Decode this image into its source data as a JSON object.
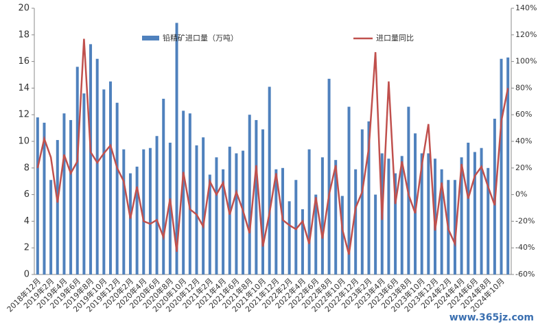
{
  "chart_data": {
    "type": "bar-line",
    "categories": [
      "2018年12月",
      null,
      "2019年2月",
      null,
      "2019年4月",
      null,
      "2019年6月",
      null,
      "2019年8月",
      null,
      "2019年10月",
      null,
      "2019年12月",
      null,
      "2020年2月",
      null,
      "2020年4月",
      null,
      "2020年6月",
      null,
      "2020年8月",
      null,
      "2020年10月",
      null,
      "2020年12月",
      null,
      "2021年2月",
      null,
      "2021年4月",
      null,
      "2021年6月",
      null,
      "2021年8月",
      null,
      "2021年10月",
      null,
      "2021年12月",
      null,
      "2022年2月",
      null,
      "2022年4月",
      null,
      "2022年6月",
      null,
      "2022年8月",
      null,
      "2022年10月",
      null,
      "2022年12月",
      null,
      "2023年2月",
      null,
      "2023年4月",
      null,
      "2023年6月",
      null,
      "2023年8月",
      null,
      "2023年10月",
      null,
      "2023年12月",
      null,
      "2024年2月",
      null,
      "2024年4月",
      null,
      "2024年6月",
      null,
      "2024年8月",
      null,
      "2024年10月",
      null
    ],
    "series": [
      {
        "name": "铅精矿进口量（万吨）",
        "color": "#4f81bd",
        "kind": "bar",
        "values": [
          11.8,
          11.4,
          7.1,
          10.1,
          12.1,
          11.6,
          15.6,
          13.6,
          17.3,
          16.2,
          13.9,
          14.5,
          12.9,
          9.4,
          7.6,
          8.1,
          9.4,
          9.5,
          10.4,
          13.2,
          9.9,
          18.9,
          12.3,
          12.1,
          9.7,
          10.3,
          7.5,
          8.8,
          7.9,
          9.6,
          9.1,
          9.3,
          12.0,
          11.6,
          10.9,
          14.1,
          7.9,
          8.0,
          5.5,
          7.1,
          4.9,
          9.4,
          6.0,
          8.8,
          14.7,
          8.6,
          5.9,
          12.6,
          7.9,
          10.9,
          11.5,
          6.0,
          9.1,
          8.7,
          7.6,
          8.9,
          12.6,
          10.6,
          9.1,
          9.1,
          8.7,
          7.9,
          7.1,
          7.1,
          8.8,
          9.9,
          9.2,
          9.5,
          8.0,
          11.7,
          16.2,
          16.3
        ]
      },
      {
        "name": "进口量同比",
        "color": "#c0504d",
        "kind": "line",
        "axis": "y2",
        "values": [
          20,
          42,
          28,
          -6,
          30,
          16,
          25,
          117,
          32,
          24,
          31,
          37,
          20,
          10,
          -18,
          6,
          -20,
          -22,
          -19,
          -32,
          -3,
          -43,
          17,
          -11,
          -15,
          -24,
          10,
          0,
          9,
          -15,
          2,
          -12,
          -29,
          22,
          -39,
          -14,
          16,
          -19,
          -23,
          -26,
          -20,
          -37,
          -2,
          -33,
          0,
          22,
          -26,
          -45,
          -10,
          2,
          35,
          107,
          -19,
          85,
          -7,
          25,
          0,
          -14,
          22,
          53,
          -27,
          9,
          -26,
          -37,
          23,
          -3,
          14,
          21,
          6,
          -8,
          55,
          80
        ]
      }
    ],
    "ylim": [
      0,
      20
    ],
    "yticks": [
      0,
      2,
      4,
      6,
      8,
      10,
      12,
      14,
      16,
      18,
      20
    ],
    "y2lim": [
      -60,
      140
    ],
    "y2ticks": [
      {
        "value": -60,
        "label": "-60%"
      },
      {
        "value": -40,
        "label": "-40%"
      },
      {
        "value": -20,
        "label": "-20%"
      },
      {
        "value": 0,
        "label": "0%"
      },
      {
        "value": 20,
        "label": "20%"
      },
      {
        "value": 40,
        "label": "40%"
      },
      {
        "value": 60,
        "label": "60%"
      },
      {
        "value": 80,
        "label": "80%"
      },
      {
        "value": 100,
        "label": "100%"
      },
      {
        "value": 120,
        "label": "120%"
      },
      {
        "value": 140,
        "label": "140%"
      }
    ],
    "watermark": "www.365jz.com"
  }
}
